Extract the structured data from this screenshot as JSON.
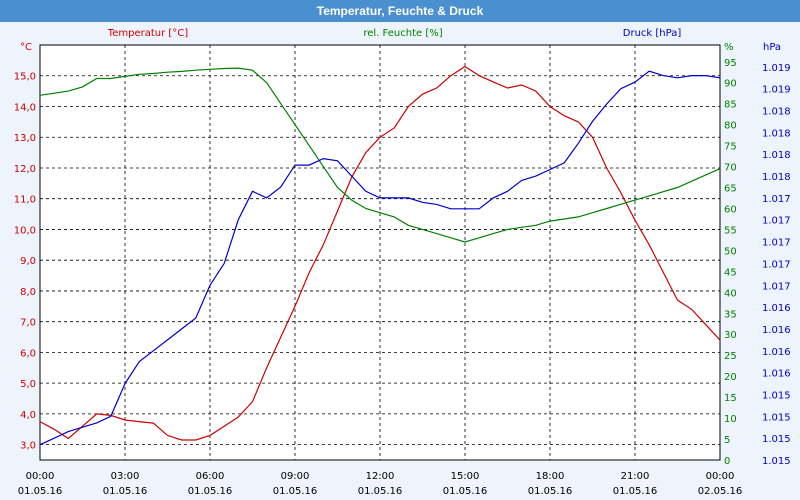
{
  "window": {
    "title": "Temperatur, Feuchte & Druck"
  },
  "chart_data": {
    "type": "line",
    "title": "Temperatur, Feuchte & Druck",
    "grid": true,
    "x": {
      "range": [
        "01.05.16 00:00",
        "02.05.16 00:00"
      ],
      "ticks": [
        {
          "time": "00:00",
          "date": "01.05.16"
        },
        {
          "time": "03:00",
          "date": "01.05.16"
        },
        {
          "time": "06:00",
          "date": "01.05.16"
        },
        {
          "time": "09:00",
          "date": "01.05.16"
        },
        {
          "time": "12:00",
          "date": "01.05.16"
        },
        {
          "time": "15:00",
          "date": "01.05.16"
        },
        {
          "time": "18:00",
          "date": "01.05.16"
        },
        {
          "time": "21:00",
          "date": "01.05.16"
        },
        {
          "time": "00:00",
          "date": "02.05.16"
        }
      ]
    },
    "axes": {
      "temperature": {
        "unit": "°C",
        "range": [
          2.5,
          16.0
        ],
        "ticks": [
          "3,0",
          "4,0",
          "5,0",
          "6,0",
          "7,0",
          "8,0",
          "9,0",
          "10,0",
          "11,0",
          "12,0",
          "13,0",
          "14,0",
          "15,0"
        ],
        "color": "#cc0000",
        "side": "left"
      },
      "humidity": {
        "unit": "%",
        "range": [
          0,
          99
        ],
        "ticks": [
          "0",
          "5",
          "10",
          "15",
          "20",
          "25",
          "30",
          "35",
          "40",
          "45",
          "50",
          "55",
          "60",
          "65",
          "70",
          "75",
          "80",
          "85",
          "90",
          "95"
        ],
        "color": "#008000",
        "side": "right"
      },
      "pressure": {
        "unit": "hPa",
        "range": [
          0,
          19
        ],
        "ticks": [
          "1.015",
          "1.015",
          "1.015",
          "1.015",
          "1.016",
          "1.016",
          "1.016",
          "1.016",
          "1.017",
          "1.017",
          "1.017",
          "1.017",
          "1.017",
          "1.018",
          "1.018",
          "1.018",
          "1.018",
          "1.019",
          "1.019"
        ],
        "color": "#0000cc",
        "side": "right"
      }
    },
    "series": [
      {
        "name": "Temperatur [°C]",
        "axis": "temperature",
        "color": "#cc0000",
        "points": [
          [
            0,
            3.75
          ],
          [
            0.5,
            3.5
          ],
          [
            1,
            3.2
          ],
          [
            1.5,
            3.6
          ],
          [
            2,
            4.0
          ],
          [
            2.5,
            3.95
          ],
          [
            3,
            3.8
          ],
          [
            3.5,
            3.75
          ],
          [
            4,
            3.7
          ],
          [
            4.5,
            3.3
          ],
          [
            5,
            3.15
          ],
          [
            5.5,
            3.15
          ],
          [
            6,
            3.3
          ],
          [
            6.5,
            3.6
          ],
          [
            7,
            3.9
          ],
          [
            7.5,
            4.4
          ],
          [
            8,
            5.5
          ],
          [
            8.5,
            6.5
          ],
          [
            9,
            7.5
          ],
          [
            9.5,
            8.6
          ],
          [
            10,
            9.5
          ],
          [
            10.5,
            10.6
          ],
          [
            11,
            11.7
          ],
          [
            11.5,
            12.5
          ],
          [
            12,
            13.0
          ],
          [
            12.5,
            13.3
          ],
          [
            13,
            14.0
          ],
          [
            13.5,
            14.4
          ],
          [
            14,
            14.6
          ],
          [
            14.5,
            15.0
          ],
          [
            15,
            15.3
          ],
          [
            15.5,
            15.0
          ],
          [
            16,
            14.8
          ],
          [
            16.5,
            14.6
          ],
          [
            17,
            14.7
          ],
          [
            17.5,
            14.5
          ],
          [
            18,
            14.0
          ],
          [
            18.5,
            13.7
          ],
          [
            19,
            13.5
          ],
          [
            19.5,
            13.0
          ],
          [
            20,
            12.0
          ],
          [
            20.5,
            11.2
          ],
          [
            21,
            10.3
          ],
          [
            21.5,
            9.5
          ],
          [
            22,
            8.6
          ],
          [
            22.5,
            7.7
          ],
          [
            23,
            7.4
          ],
          [
            23.5,
            6.9
          ],
          [
            24,
            6.4
          ]
        ]
      },
      {
        "name": "rel. Feuchte [%]",
        "axis": "humidity",
        "color": "#008000",
        "points": [
          [
            0,
            87
          ],
          [
            0.5,
            87.5
          ],
          [
            1,
            88
          ],
          [
            1.5,
            89
          ],
          [
            2,
            91
          ],
          [
            2.5,
            91
          ],
          [
            3,
            91.5
          ],
          [
            3.5,
            92
          ],
          [
            4,
            92.2
          ],
          [
            4.5,
            92.5
          ],
          [
            5,
            92.7
          ],
          [
            5.5,
            93
          ],
          [
            6,
            93.2
          ],
          [
            6.5,
            93.4
          ],
          [
            7,
            93.5
          ],
          [
            7.5,
            93
          ],
          [
            8,
            90
          ],
          [
            8.5,
            85
          ],
          [
            9,
            80
          ],
          [
            9.5,
            75
          ],
          [
            10,
            70
          ],
          [
            10.5,
            65
          ],
          [
            11,
            62
          ],
          [
            11.5,
            60
          ],
          [
            12,
            59
          ],
          [
            12.5,
            58
          ],
          [
            13,
            56
          ],
          [
            13.5,
            55
          ],
          [
            14,
            54
          ],
          [
            14.5,
            53
          ],
          [
            15,
            52
          ],
          [
            15.5,
            53
          ],
          [
            16,
            54
          ],
          [
            16.5,
            55
          ],
          [
            17,
            55.5
          ],
          [
            17.5,
            56
          ],
          [
            18,
            57
          ],
          [
            18.5,
            57.5
          ],
          [
            19,
            58
          ],
          [
            19.5,
            59
          ],
          [
            20,
            60
          ],
          [
            20.5,
            61
          ],
          [
            21,
            62
          ],
          [
            21.5,
            63
          ],
          [
            22,
            64
          ],
          [
            22.5,
            65
          ],
          [
            23,
            66.5
          ],
          [
            23.5,
            68
          ],
          [
            24,
            69.5
          ]
        ]
      },
      {
        "name": "Druck [hPa]",
        "axis": "pressure",
        "color": "#0000cc",
        "points": [
          [
            0,
            0.7
          ],
          [
            0.5,
            1.0
          ],
          [
            1,
            1.3
          ],
          [
            1.5,
            1.5
          ],
          [
            2,
            1.7
          ],
          [
            2.5,
            2.0
          ],
          [
            3,
            3.5
          ],
          [
            3.5,
            4.5
          ],
          [
            4,
            5.0
          ],
          [
            4.5,
            5.5
          ],
          [
            5,
            6.0
          ],
          [
            5.5,
            6.5
          ],
          [
            6,
            8.0
          ],
          [
            6.5,
            9.0
          ],
          [
            7,
            11.0
          ],
          [
            7.5,
            12.3
          ],
          [
            8,
            12.0
          ],
          [
            8.5,
            12.5
          ],
          [
            9,
            13.5
          ],
          [
            9.5,
            13.5
          ],
          [
            10,
            13.8
          ],
          [
            10.5,
            13.7
          ],
          [
            11,
            13.0
          ],
          [
            11.5,
            12.3
          ],
          [
            12,
            12.0
          ],
          [
            12.5,
            12.0
          ],
          [
            13,
            12.0
          ],
          [
            13.5,
            11.8
          ],
          [
            14,
            11.7
          ],
          [
            14.5,
            11.5
          ],
          [
            15,
            11.5
          ],
          [
            15.5,
            11.5
          ],
          [
            16,
            12.0
          ],
          [
            16.5,
            12.3
          ],
          [
            17,
            12.8
          ],
          [
            17.5,
            13.0
          ],
          [
            18,
            13.3
          ],
          [
            18.5,
            13.6
          ],
          [
            19,
            14.5
          ],
          [
            19.5,
            15.5
          ],
          [
            20,
            16.3
          ],
          [
            20.5,
            17.0
          ],
          [
            21,
            17.3
          ],
          [
            21.5,
            17.8
          ],
          [
            22,
            17.6
          ],
          [
            22.5,
            17.5
          ],
          [
            23,
            17.6
          ],
          [
            23.5,
            17.6
          ],
          [
            24,
            17.5
          ]
        ]
      }
    ]
  }
}
